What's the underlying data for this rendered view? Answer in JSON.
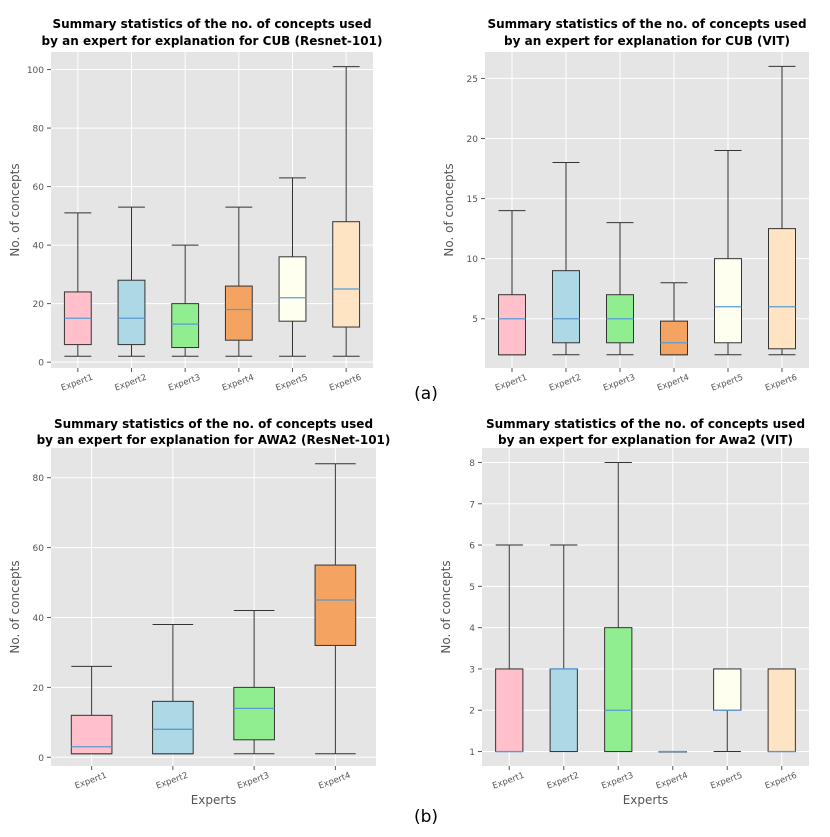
{
  "panel_labels": {
    "a": "(a)",
    "b": "(b)"
  },
  "style": {
    "plot_bg": "#e5e5e5",
    "grid": "#ffffff",
    "box_edge": "#333333",
    "median": "#5a9bd4",
    "whisker": "#333333",
    "tick_text": "#555555",
    "axis_label": "#555555",
    "expert_colors": [
      "#ffc0cb",
      "#add8e6",
      "#90ee90",
      "#f4a460",
      "#fffff0",
      "#ffe4c4"
    ]
  },
  "chart_data": [
    {
      "type": "box",
      "title": [
        "Summary statistics of the no. of concepts used",
        "by an expert for explanation for CUB (Resnet-101)"
      ],
      "xlabel": "",
      "ylabel": "No. of concepts",
      "ylim": [
        -2,
        106
      ],
      "yticks": [
        0,
        20,
        40,
        60,
        80,
        100
      ],
      "categories": [
        "Expert1",
        "Expert2",
        "Expert3",
        "Expert4",
        "Expert5",
        "Expert6"
      ],
      "boxes": [
        {
          "min": 2,
          "q1": 6,
          "median": 15,
          "q3": 24,
          "max": 51
        },
        {
          "min": 2,
          "q1": 6,
          "median": 15,
          "q3": 28,
          "max": 53
        },
        {
          "min": 2,
          "q1": 5,
          "median": 13,
          "q3": 20,
          "max": 40
        },
        {
          "min": 2,
          "q1": 7.5,
          "median": 18,
          "q3": 26,
          "max": 53
        },
        {
          "min": 2,
          "q1": 14,
          "median": 22,
          "q3": 36,
          "max": 63
        },
        {
          "min": 2,
          "q1": 12,
          "median": 25,
          "q3": 48,
          "max": 101
        }
      ]
    },
    {
      "type": "box",
      "title": [
        "Summary statistics of the no. of concepts used",
        "by an expert for explanation for CUB (VIT)"
      ],
      "xlabel": "",
      "ylabel": "No. of concepts",
      "ylim": [
        0.9,
        27.2
      ],
      "yticks": [
        5,
        10,
        15,
        20,
        25
      ],
      "categories": [
        "Expert1",
        "Expert2",
        "Expert3",
        "Expert4",
        "Expert5",
        "Expert6"
      ],
      "boxes": [
        {
          "min": 2,
          "q1": 2,
          "median": 5,
          "q3": 7,
          "max": 14
        },
        {
          "min": 2,
          "q1": 3,
          "median": 5,
          "q3": 9,
          "max": 18
        },
        {
          "min": 2,
          "q1": 3,
          "median": 5,
          "q3": 7,
          "max": 13
        },
        {
          "min": 2,
          "q1": 2,
          "median": 3,
          "q3": 4.8,
          "max": 8
        },
        {
          "min": 2,
          "q1": 3,
          "median": 6,
          "q3": 10,
          "max": 19
        },
        {
          "min": 2,
          "q1": 2.5,
          "median": 6,
          "q3": 12.5,
          "max": 26
        }
      ]
    },
    {
      "type": "box",
      "title": [
        "Summary statistics of the no. of concepts used",
        "by an expert for explanation for AWA2 (ResNet-101)"
      ],
      "xlabel": "Experts",
      "ylabel": "No. of concepts",
      "ylim": [
        -2.5,
        88.5
      ],
      "yticks": [
        0,
        20,
        40,
        60,
        80
      ],
      "categories": [
        "Expert1",
        "Expert2",
        "Expert3",
        "Expert4"
      ],
      "boxes": [
        {
          "min": 1,
          "q1": 1,
          "median": 3,
          "q3": 12,
          "max": 26
        },
        {
          "min": 1,
          "q1": 1,
          "median": 8,
          "q3": 16,
          "max": 38
        },
        {
          "min": 1,
          "q1": 5,
          "median": 14,
          "q3": 20,
          "max": 42
        },
        {
          "min": 1,
          "q1": 32,
          "median": 45,
          "q3": 55,
          "max": 84
        }
      ]
    },
    {
      "type": "box",
      "title": [
        "Summary statistics of the no. of concepts used",
        "by an expert for explanation for Awa2 (VIT)"
      ],
      "xlabel": "Experts",
      "ylabel": "No. of concepts",
      "ylim": [
        0.65,
        8.35
      ],
      "yticks": [
        1,
        2,
        3,
        4,
        5,
        6,
        7,
        8
      ],
      "categories": [
        "Expert1",
        "Expert2",
        "Expert3",
        "Expert4",
        "Expert5",
        "Expert6"
      ],
      "boxes": [
        {
          "min": 1,
          "q1": 1,
          "median": 1,
          "q3": 3,
          "max": 6
        },
        {
          "min": 1,
          "q1": 1,
          "median": 3,
          "q3": 3,
          "max": 6
        },
        {
          "min": 1,
          "q1": 1,
          "median": 2,
          "q3": 4,
          "max": 8
        },
        {
          "min": 1,
          "q1": 1,
          "median": 1,
          "q3": 1,
          "max": 1
        },
        {
          "min": 1,
          "q1": 2,
          "median": 2,
          "q3": 3,
          "max": 3
        },
        {
          "min": 1,
          "q1": 1,
          "median": 1,
          "q3": 3,
          "max": 3
        }
      ]
    }
  ]
}
